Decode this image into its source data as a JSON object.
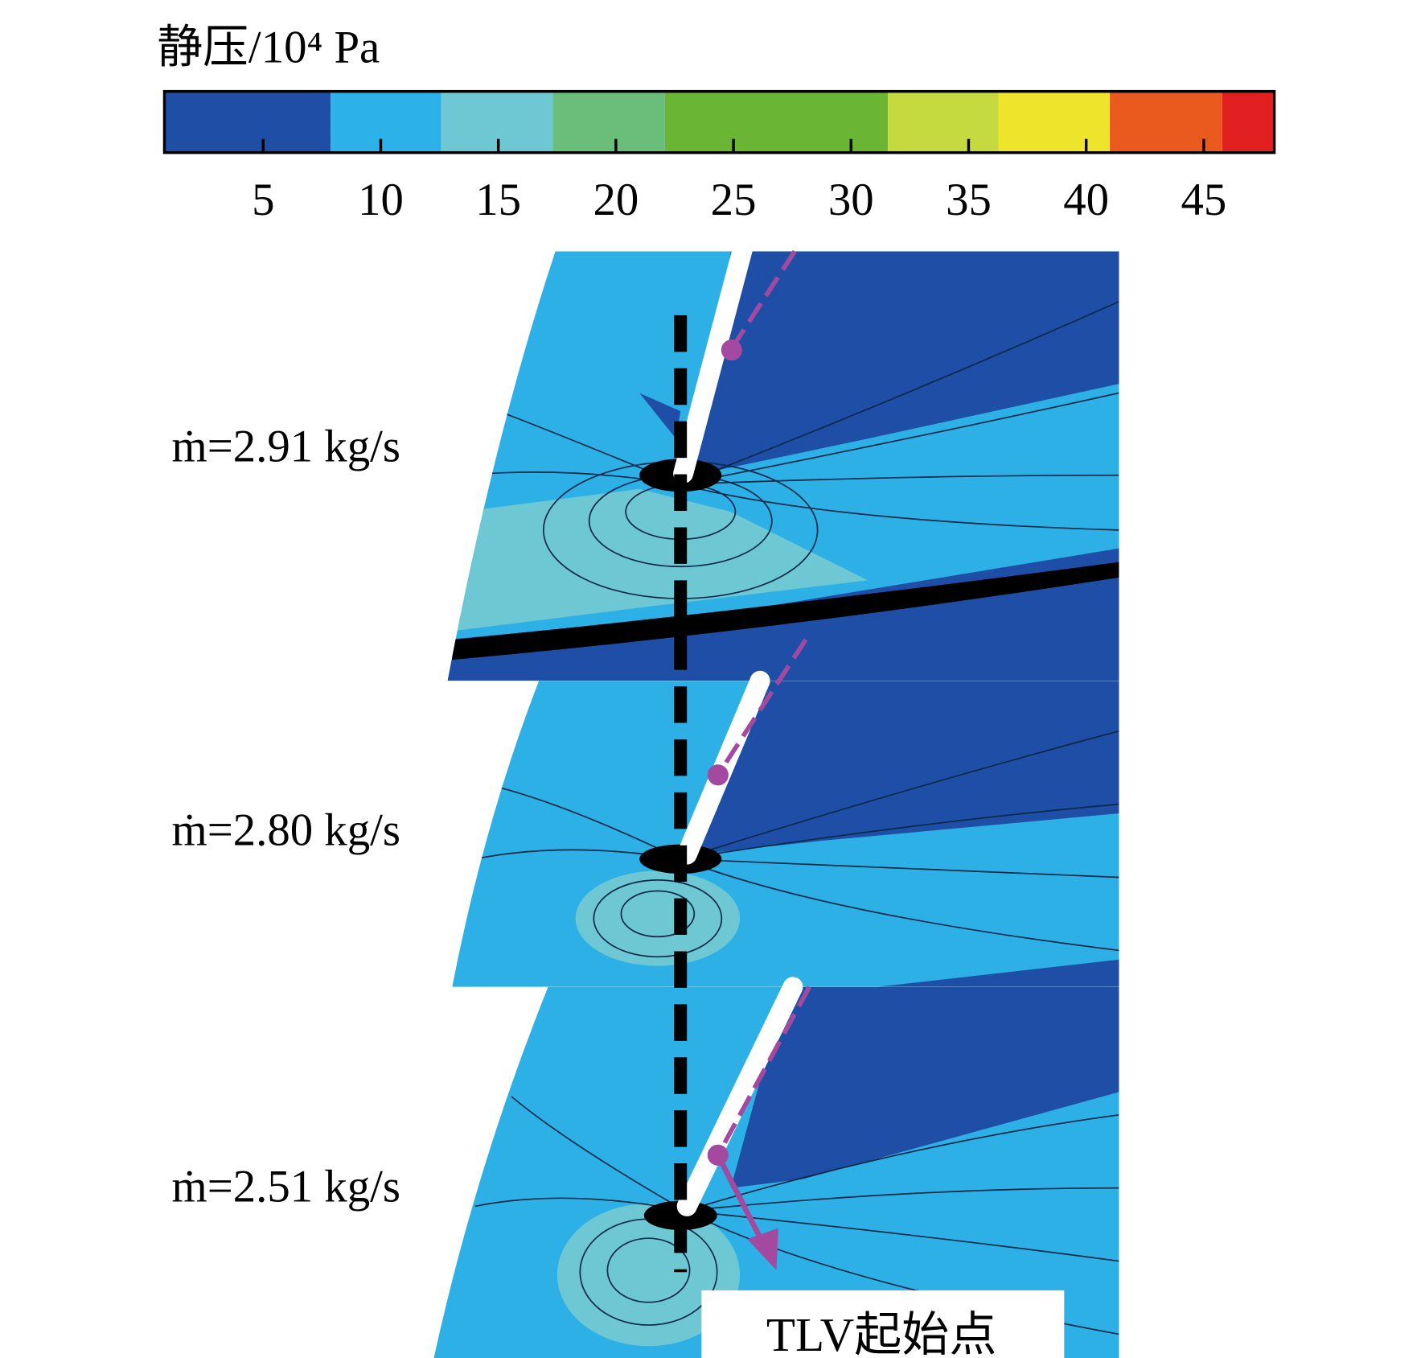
{
  "chart_data": {
    "type": "contour",
    "colorbar": {
      "title": "静压/10⁴ Pa",
      "lim": [
        0.8,
        48
      ],
      "ticks": [
        5,
        10,
        15,
        20,
        25,
        30,
        35,
        40,
        45
      ]
    },
    "panels": [
      {
        "label": "ṁ=2.91 kg/s"
      },
      {
        "label": "ṁ=2.80 kg/s"
      },
      {
        "label": "ṁ=2.51 kg/s"
      }
    ],
    "annotation": "TLV起始点"
  }
}
